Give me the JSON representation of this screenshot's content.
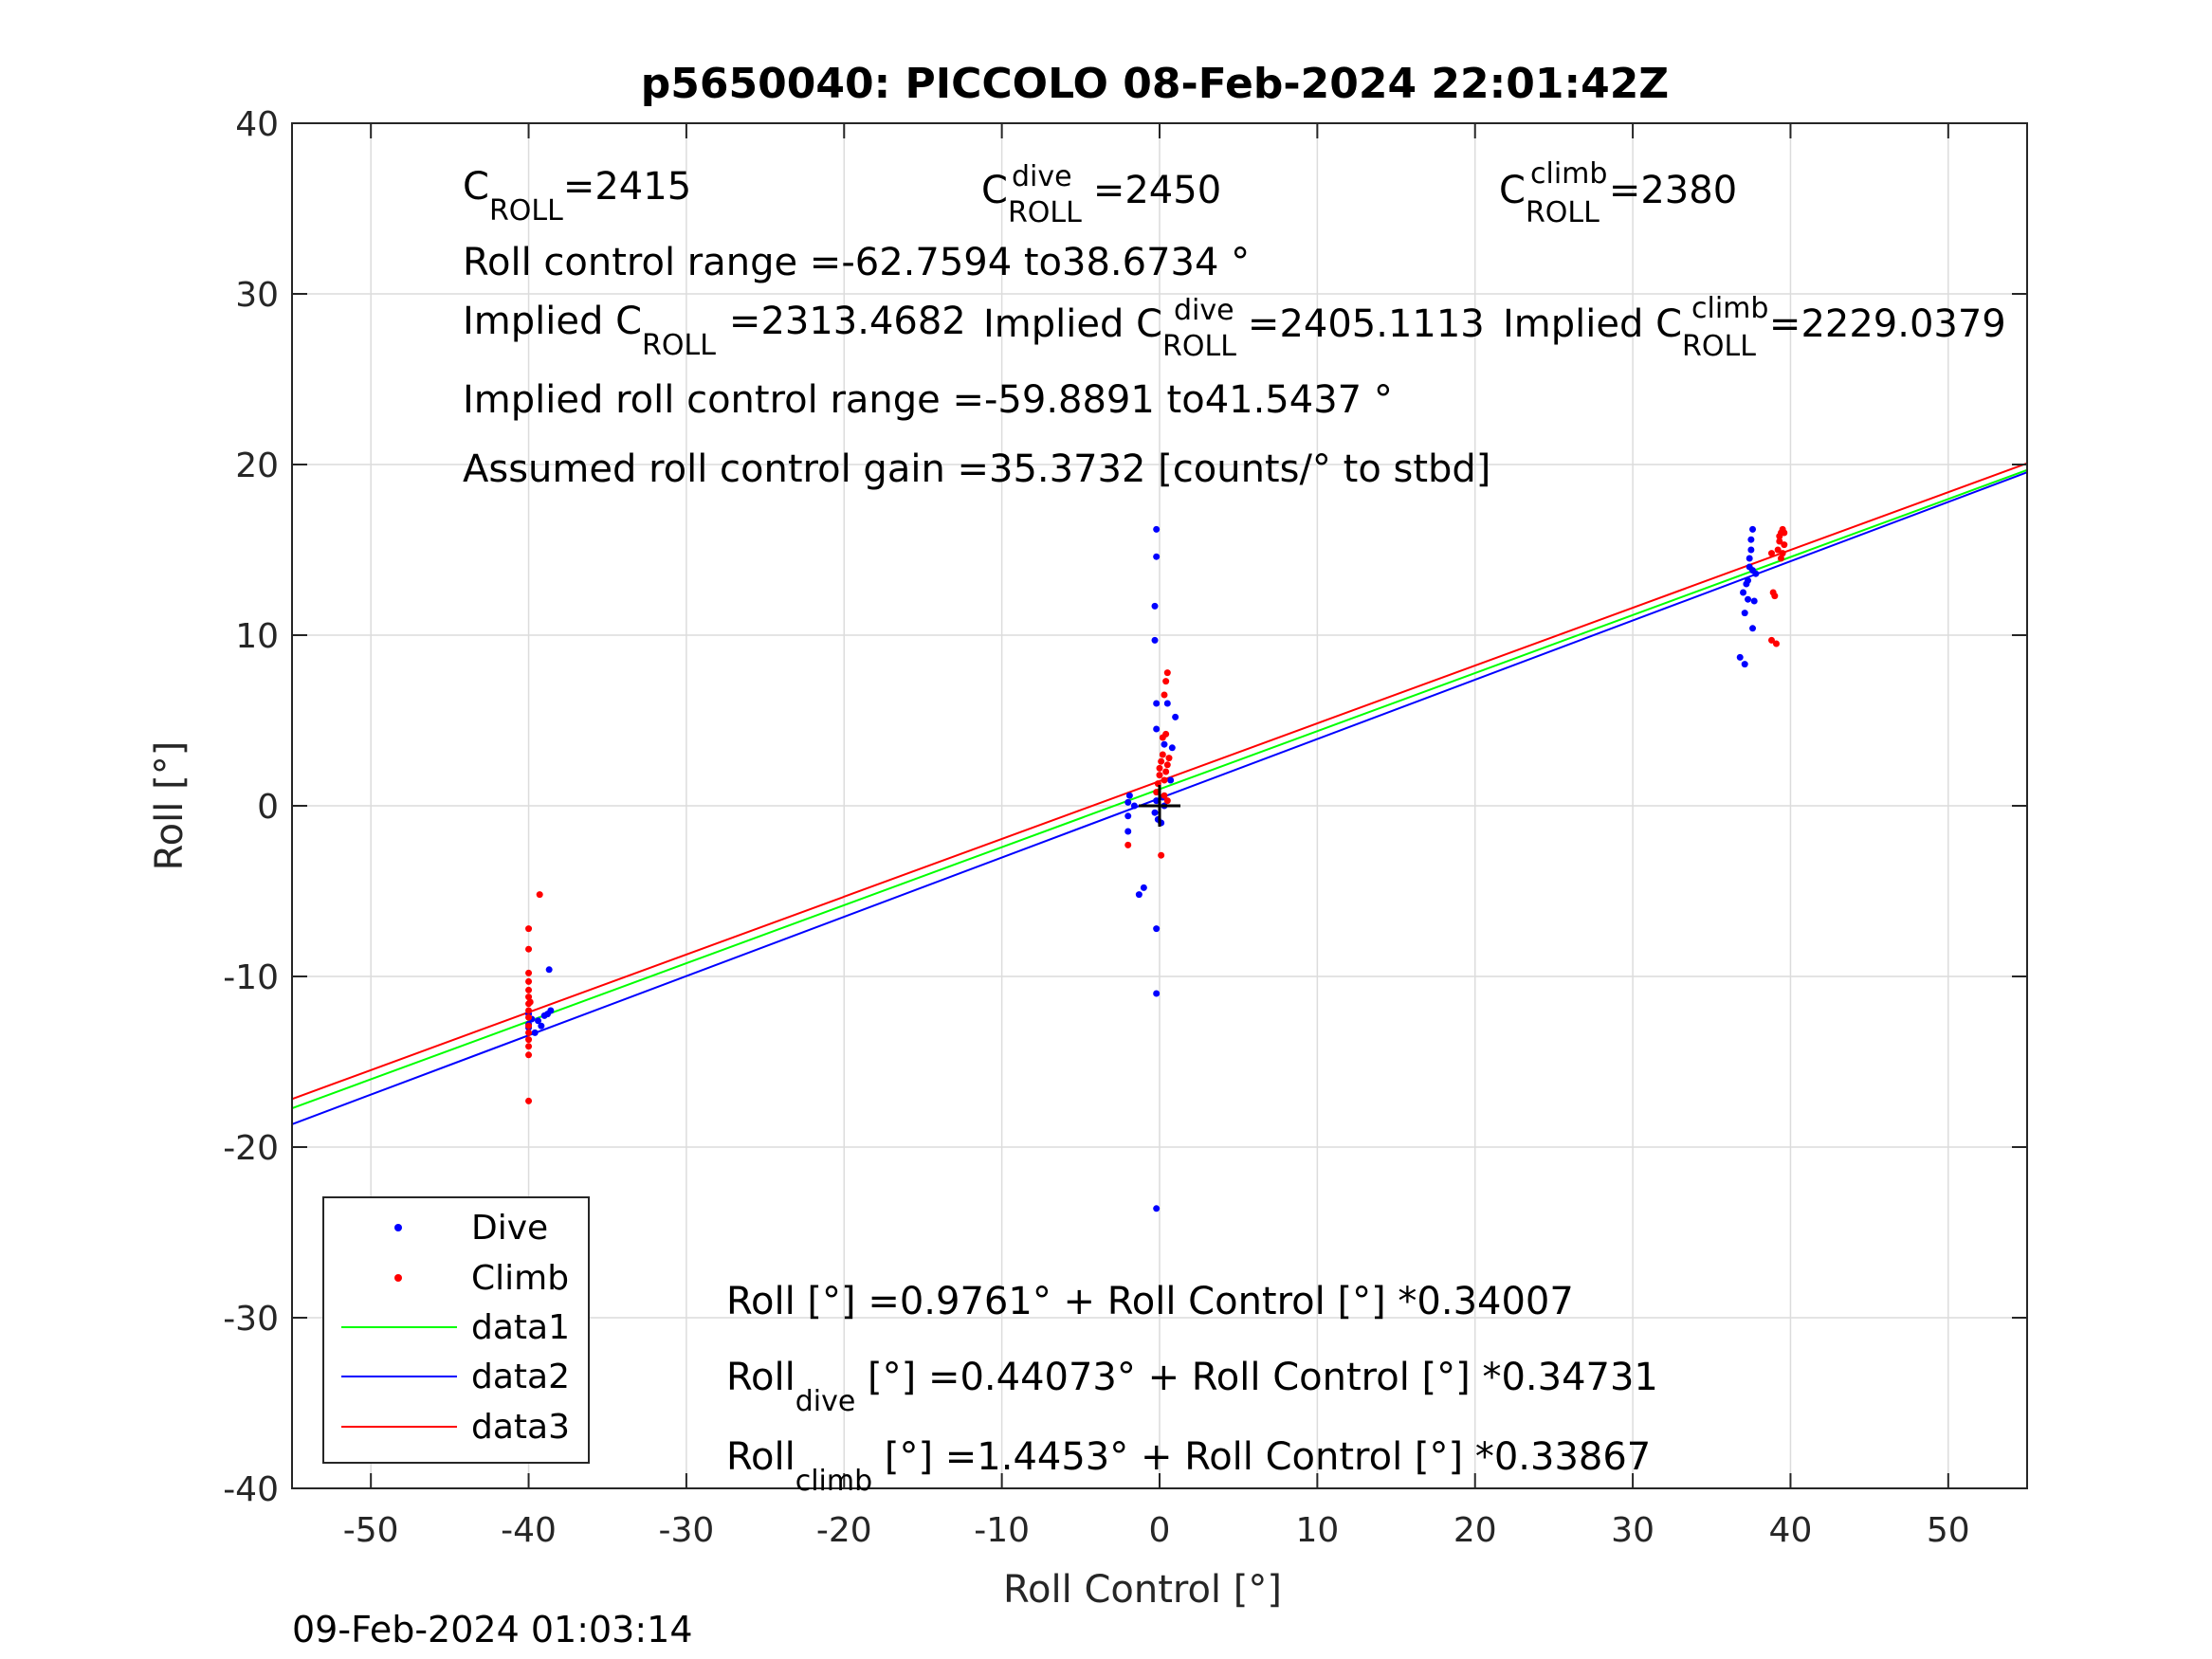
{
  "chart_data": {
    "type": "scatter",
    "title": "p5650040: PICCOLO 08-Feb-2024 22:01:42Z",
    "xlabel": "Roll Control [°]",
    "ylabel": "Roll [°]",
    "xlim": [
      -55,
      55
    ],
    "ylim": [
      -40,
      40
    ],
    "xticks": [
      -50,
      -40,
      -30,
      -20,
      -10,
      0,
      10,
      20,
      30,
      40,
      50
    ],
    "yticks": [
      -40,
      -30,
      -20,
      -10,
      0,
      10,
      20,
      30,
      40
    ],
    "xtick_labels": [
      "-50",
      "-40",
      "-30",
      "-20",
      "-10",
      "0",
      "10",
      "20",
      "30",
      "40",
      "50"
    ],
    "ytick_labels": [
      "-40",
      "-30",
      "-20",
      "-10",
      "0",
      "10",
      "20",
      "30",
      "40"
    ],
    "grid": true,
    "legend_position": "bottom-left",
    "timestamp": "09-Feb-2024 01:03:14",
    "colors": {
      "dive": "#0000ff",
      "climb": "#ff0000",
      "data1": "#00ff00",
      "data2": "#0000ff",
      "data3": "#ff0000",
      "marker": "#000000"
    },
    "series": [
      {
        "name": "Dive",
        "kind": "points",
        "color": "#0000ff",
        "points": [
          [
            -40,
            -12.2
          ],
          [
            -40,
            -12.8
          ],
          [
            -40,
            -13.0
          ],
          [
            -39.8,
            -12.5
          ],
          [
            -39.6,
            -13.3
          ],
          [
            -39.4,
            -12.6
          ],
          [
            -39.2,
            -12.9
          ],
          [
            -39.0,
            -12.3
          ],
          [
            -38.7,
            -9.6
          ],
          [
            -38.6,
            -12.0
          ],
          [
            -38.8,
            -12.2
          ],
          [
            -2,
            -1.5
          ],
          [
            -2,
            -0.6
          ],
          [
            -2,
            0.2
          ],
          [
            -1.9,
            0.6
          ],
          [
            -1.6,
            0.0
          ],
          [
            -1.3,
            -5.2
          ],
          [
            -1.0,
            -4.8
          ],
          [
            -0.3,
            -0.4
          ],
          [
            -0.2,
            0.3
          ],
          [
            -0.1,
            -0.8
          ],
          [
            0.1,
            -1.0
          ],
          [
            0.2,
            0.5
          ],
          [
            0.3,
            0.0
          ],
          [
            -0.2,
            16.2
          ],
          [
            -0.2,
            14.6
          ],
          [
            -0.3,
            11.7
          ],
          [
            -0.3,
            9.7
          ],
          [
            -0.2,
            6.0
          ],
          [
            -0.2,
            4.5
          ],
          [
            0.3,
            3.6
          ],
          [
            0.5,
            6.0
          ],
          [
            0.8,
            3.4
          ],
          [
            1.0,
            5.2
          ],
          [
            0.7,
            1.5
          ],
          [
            -0.2,
            -7.2
          ],
          [
            -0.2,
            -11.0
          ],
          [
            -0.2,
            -23.6
          ],
          [
            36.8,
            8.7
          ],
          [
            37.1,
            8.3
          ],
          [
            37.0,
            12.5
          ],
          [
            37.1,
            11.3
          ],
          [
            37.3,
            12.1
          ],
          [
            37.3,
            13.2
          ],
          [
            37.4,
            14.0
          ],
          [
            37.4,
            14.5
          ],
          [
            37.5,
            15.0
          ],
          [
            37.5,
            15.6
          ],
          [
            37.6,
            16.2
          ],
          [
            37.6,
            13.8
          ],
          [
            37.7,
            12.0
          ],
          [
            37.6,
            10.4
          ],
          [
            37.8,
            13.6
          ],
          [
            37.2,
            13.0
          ]
        ]
      },
      {
        "name": "Climb",
        "kind": "points",
        "color": "#ff0000",
        "points": [
          [
            -40,
            -7.2
          ],
          [
            -40,
            -8.4
          ],
          [
            -40,
            -9.8
          ],
          [
            -40,
            -10.3
          ],
          [
            -40,
            -10.8
          ],
          [
            -40,
            -11.2
          ],
          [
            -40,
            -11.6
          ],
          [
            -40,
            -12.0
          ],
          [
            -40,
            -12.4
          ],
          [
            -40,
            -12.9
          ],
          [
            -40,
            -13.3
          ],
          [
            -40,
            -13.7
          ],
          [
            -40,
            -14.1
          ],
          [
            -40,
            -14.6
          ],
          [
            -40,
            -17.3
          ],
          [
            -39.9,
            -11.5
          ],
          [
            -39.3,
            -5.2
          ],
          [
            -2,
            -2.3
          ],
          [
            -0.2,
            0.8
          ],
          [
            -0.1,
            1.3
          ],
          [
            0,
            1.8
          ],
          [
            0,
            2.2
          ],
          [
            0.1,
            2.6
          ],
          [
            0.2,
            3.0
          ],
          [
            0.3,
            1.5
          ],
          [
            0.4,
            2.0
          ],
          [
            0.5,
            2.4
          ],
          [
            0.2,
            4.0
          ],
          [
            0.4,
            4.2
          ],
          [
            0.3,
            6.5
          ],
          [
            0.5,
            7.8
          ],
          [
            0.4,
            7.3
          ],
          [
            0.6,
            2.8
          ],
          [
            0.1,
            -2.9
          ],
          [
            0.5,
            0.3
          ],
          [
            0.3,
            0.6
          ],
          [
            38.8,
            9.7
          ],
          [
            39.1,
            9.5
          ],
          [
            38.9,
            12.5
          ],
          [
            39.0,
            12.3
          ],
          [
            38.8,
            14.8
          ],
          [
            39.2,
            15.0
          ],
          [
            39.3,
            15.5
          ],
          [
            39.4,
            16.0
          ],
          [
            39.5,
            16.2
          ],
          [
            39.4,
            14.5
          ],
          [
            39.5,
            14.8
          ],
          [
            39.6,
            15.3
          ],
          [
            39.3,
            15.8
          ],
          [
            39.6,
            16.0
          ]
        ]
      },
      {
        "name": "data1",
        "kind": "line",
        "color": "#00ff00",
        "intercept": 0.9761,
        "slope": 0.34007
      },
      {
        "name": "data2",
        "kind": "line",
        "color": "#0000ff",
        "intercept": 0.44073,
        "slope": 0.34731
      },
      {
        "name": "data3",
        "kind": "line",
        "color": "#ff0000",
        "intercept": 1.4453,
        "slope": 0.33867
      }
    ],
    "annotations": {
      "c_roll": {
        "base": "C",
        "sub": "ROLL",
        "value": "=2415"
      },
      "c_roll_dive": {
        "base": "C",
        "sup": "dive",
        "sub": "ROLL",
        "value": "=2450"
      },
      "c_roll_climb": {
        "base": "C",
        "sup": "climb",
        "sub": "ROLL",
        "value": "=2380"
      },
      "roll_control_range": "Roll control range =-62.7594 to38.6734 °",
      "implied_c_roll": {
        "base": "Implied C",
        "sub": "ROLL",
        "value": "=2313.4682"
      },
      "implied_c_roll_dive": {
        "base": "Implied C",
        "sup": "dive",
        "sub": "ROLL",
        "value": "=2405.1113"
      },
      "implied_c_roll_climb": {
        "base": "Implied C",
        "sup": "climb",
        "sub": "ROLL",
        "value": "=2229.0379"
      },
      "implied_roll_control_range": "Implied roll control range =-59.8891 to41.5437 °",
      "assumed_gain": "Assumed roll control gain =35.3732 [counts/° to stbd]",
      "fit_all": "Roll [°] =0.9761° + Roll Control [°] *0.34007",
      "fit_dive": {
        "base": "Roll",
        "sub": "dive",
        "rest": " [°] =0.44073° + Roll Control [°] *0.34731"
      },
      "fit_climb": {
        "base": "Roll",
        "sub": "climb",
        "rest": " [°] =1.4453° + Roll Control [°] *0.33867"
      }
    }
  }
}
